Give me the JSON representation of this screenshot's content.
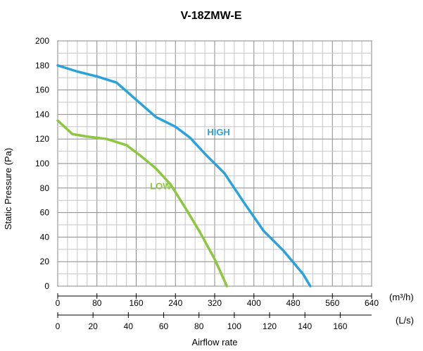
{
  "chart_data": {
    "type": "line",
    "title": "V-18ZMW-E",
    "xlabel": "Airflow rate",
    "ylabel": "Static Pressure (Pa)",
    "x_unit_primary": "(m³/h)",
    "x_unit_secondary": "(L/s)",
    "xlim": [
      0,
      640
    ],
    "ylim": [
      0,
      200
    ],
    "x_ticks_primary": [
      "0",
      "80",
      "160",
      "240",
      "320",
      "400",
      "480",
      "560",
      "640"
    ],
    "x_ticks_secondary": [
      "0",
      "20",
      "40",
      "60",
      "80",
      "100",
      "120",
      "140",
      "160"
    ],
    "y_ticks": [
      "0",
      "20",
      "40",
      "60",
      "80",
      "100",
      "120",
      "140",
      "160",
      "180",
      "200"
    ],
    "grid": true,
    "series": [
      {
        "name": "HIGH",
        "color": "#2aa3dd",
        "x": [
          0,
          40,
          80,
          120,
          160,
          200,
          240,
          270,
          300,
          340,
          380,
          420,
          460,
          500,
          515
        ],
        "y": [
          180,
          175,
          171,
          166,
          152,
          138,
          130,
          121,
          108,
          92,
          68,
          45,
          29,
          10,
          0
        ]
      },
      {
        "name": "LOW",
        "color": "#8dc63f",
        "x": [
          0,
          30,
          60,
          100,
          140,
          170,
          200,
          230,
          260,
          290,
          320,
          345
        ],
        "y": [
          135,
          124,
          122,
          120,
          115,
          106,
          96,
          83,
          64,
          44,
          22,
          0
        ]
      }
    ]
  }
}
